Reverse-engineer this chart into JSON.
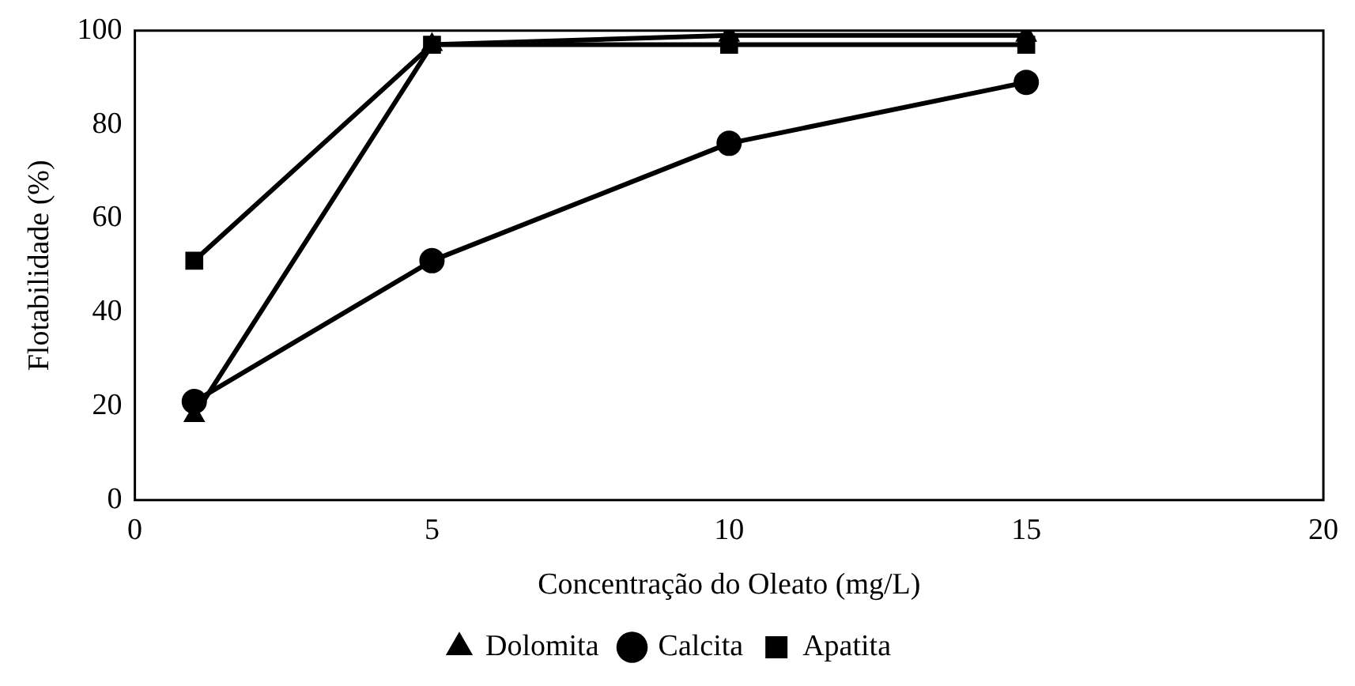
{
  "chart_data": {
    "type": "line",
    "xlabel": "Concentração do Oleato (mg/L)",
    "ylabel": "Flotabilidade (%)",
    "x": [
      1,
      5,
      10,
      15
    ],
    "series": [
      {
        "name": "Dolomita",
        "color": "#000000",
        "marker": "triangle",
        "values": [
          18,
          97,
          99,
          99
        ]
      },
      {
        "name": "Calcita",
        "color": "#000000",
        "marker": "circle",
        "values": [
          21,
          51,
          76,
          89
        ]
      },
      {
        "name": "Apatita",
        "color": "#000000",
        "marker": "square",
        "values": [
          51,
          97,
          97,
          97
        ]
      }
    ],
    "xlim": [
      0,
      20
    ],
    "xticks": [
      0,
      5,
      10,
      15,
      20
    ],
    "ylim": [
      0,
      100
    ],
    "yticks": [
      0,
      20,
      40,
      60,
      80,
      100
    ],
    "grid": false,
    "legend": "bottom",
    "line_style": "solid"
  }
}
